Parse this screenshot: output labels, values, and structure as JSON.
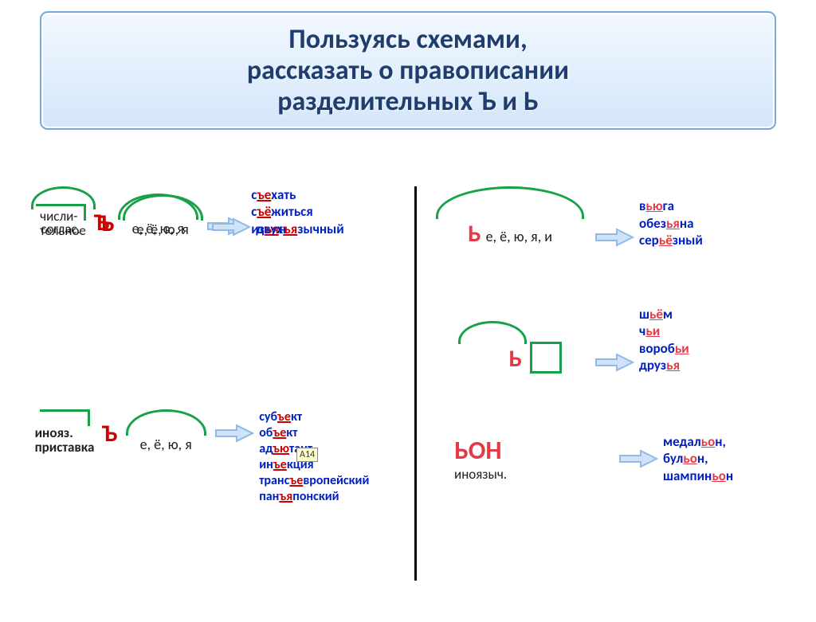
{
  "title": {
    "line1": "Пользуясь схемами,",
    "line2": "рассказать о правописании",
    "line3": "разделительных Ъ и Ь"
  },
  "colors": {
    "title_text": "#1f3d6d",
    "title_bg_top": "#f2f8ff",
    "title_bg_bottom": "#d4e6fa",
    "title_border": "#79a8d8",
    "morpheme_green": "#18a148",
    "hard_sign": "#cc0000",
    "soft_sign": "#e63946",
    "example_text": "#0020c0",
    "label_text": "#202020",
    "arrow_line": "#8fb9e6",
    "arrow_fill": "#cfe2f8",
    "badge_bg": "#fefecd"
  },
  "left": {
    "row1": {
      "prefix_label": "соглас.",
      "sign": "Ъ",
      "vowels": "е, ё, ю, я",
      "examples_html": "с<span class='hard'>ъе</span>хать<br>с<span class='hard'>ъё</span>житься<br>из<span class='hard'>ъя</span>н"
    },
    "row2": {
      "prefix_label1": "числи-",
      "prefix_label2": "тельное",
      "sign": "Ъ",
      "vowels": "е, ё, ю, я",
      "examples_html": "двух<span class='hard'>ъя</span>зычный"
    },
    "row3": {
      "prefix_label1": "инояз.",
      "prefix_label2": "приставка",
      "sign": "Ъ",
      "vowels": "е, ё, ю, я",
      "badge": "А14",
      "examples_html": "суб<span class='hard'>ъе</span>кт<br>об<span class='hard'>ъе</span>кт<br>ад<span class='hard'>ъю</span>тант<br>ин<span class='hard'>ъе</span>кция<br>транс<span class='hard'>ъе</span>вропейский<br>пан<span class='hard'>ъя</span>понский"
    }
  },
  "right": {
    "row1": {
      "sign": "Ь",
      "vowels": "е, ё, ю, я, и",
      "examples_html": "в<span class='red'>ью</span>га<br>обез<span class='red'>ья</span>на<br>сер<span class='red'>ьё</span>зный"
    },
    "row2": {
      "sign": "Ь",
      "examples_html": "ш<span class='red'>ьё</span>м<br>ч<span class='red'>ьи</span><br>вороб<span class='red'>ьи</span><br>друз<span class='red'>ья</span>"
    },
    "row3": {
      "bon": "ЬОН",
      "label": "иноязыч.",
      "examples_html": "медал<span class='red'>ьо</span>н,<br>бул<span class='red'>ьо</span>н,<br>шампин<span class='red'>ьо</span>н"
    }
  }
}
